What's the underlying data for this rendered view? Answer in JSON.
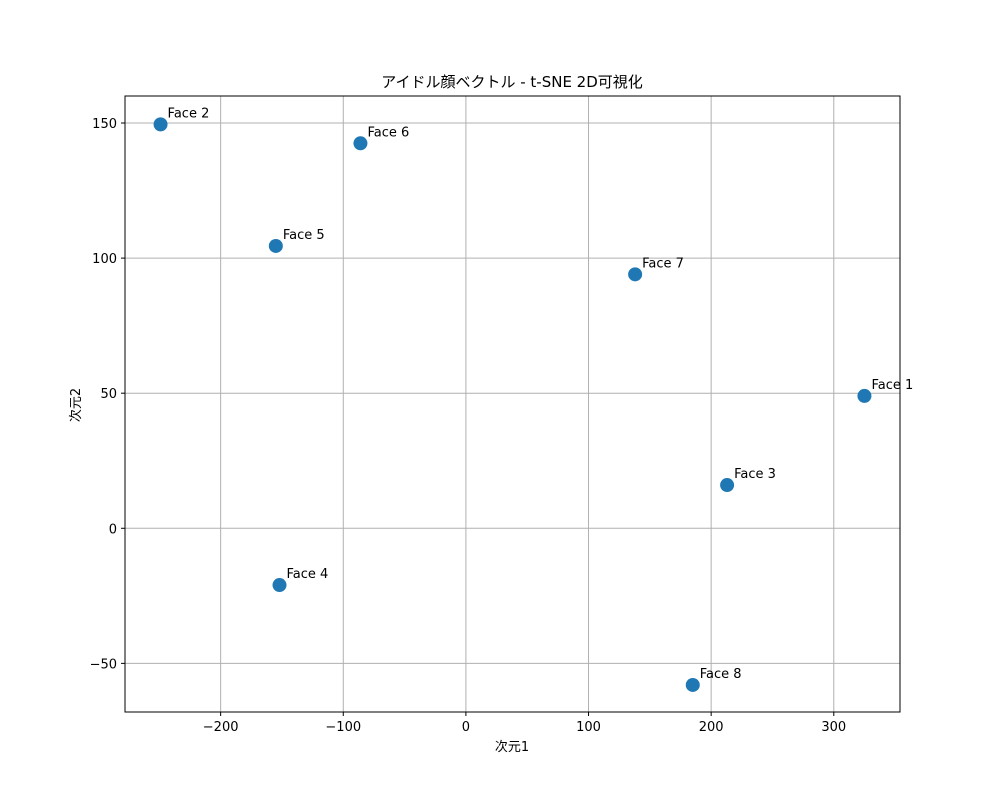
{
  "chart_data": {
    "type": "scatter",
    "title": "アイドル顔ベクトル - t-SNE 2D可視化",
    "xlabel": "次元1",
    "ylabel": "次元2",
    "xlim": [
      -278,
      354
    ],
    "ylim": [
      -68,
      160
    ],
    "xticks": [
      -200,
      -100,
      0,
      100,
      200,
      300
    ],
    "xtick_labels": [
      "−200",
      "−100",
      "0",
      "100",
      "200",
      "300"
    ],
    "yticks": [
      -50,
      0,
      50,
      100,
      150
    ],
    "ytick_labels": [
      "−50",
      "0",
      "50",
      "100",
      "150"
    ],
    "grid": true,
    "color": "#1f77b4",
    "points": [
      {
        "label": "Face 1",
        "x": 325,
        "y": 49
      },
      {
        "label": "Face 2",
        "x": -249,
        "y": 149.5
      },
      {
        "label": "Face 3",
        "x": 213,
        "y": 16
      },
      {
        "label": "Face 4",
        "x": -152,
        "y": -21
      },
      {
        "label": "Face 5",
        "x": -155,
        "y": 104.5
      },
      {
        "label": "Face 6",
        "x": -86,
        "y": 142.5
      },
      {
        "label": "Face 7",
        "x": 138,
        "y": 94
      },
      {
        "label": "Face 8",
        "x": 185,
        "y": -58
      }
    ]
  }
}
